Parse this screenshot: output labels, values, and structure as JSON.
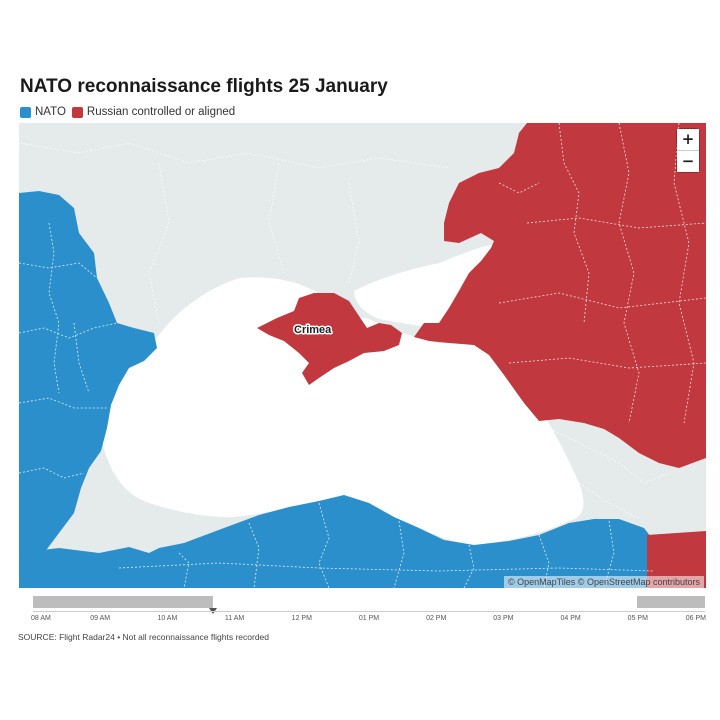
{
  "title": "NATO reconnaissance flights 25 January",
  "legend": [
    {
      "label": "NATO",
      "color": "#2b8fcc"
    },
    {
      "label": "Russian controlled or aligned",
      "color": "#c1383e"
    }
  ],
  "map": {
    "colors": {
      "land": "#e5eaeb",
      "sea": "#ffffff",
      "nato": "#2b8fcc",
      "russia": "#c1383e"
    },
    "place_label": "Crimea",
    "zoom_in": "+",
    "zoom_out": "−",
    "attribution": "© OpenMapTiles © OpenStreetMap contributors"
  },
  "timeline": {
    "ticks": [
      "08 AM",
      "09 AM",
      "10 AM",
      "11 AM",
      "12 PM",
      "01 PM",
      "02 PM",
      "03 PM",
      "04 PM",
      "05 PM",
      "06 PM"
    ],
    "selected_start": "08 AM",
    "selected_end": "11 AM",
    "handle_at": "11 AM",
    "end_range_start": "05 PM",
    "end_range_end": "06 PM"
  },
  "source": "SOURCE: Flight Radar24 • Not all reconnaissance flights recorded"
}
